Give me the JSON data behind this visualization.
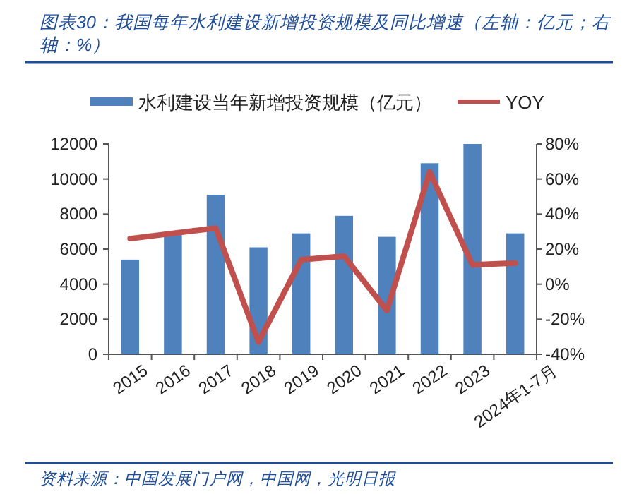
{
  "chart_data": {
    "type": "bar",
    "title": "图表30：我国每年水利建设新增投资规模及同比增速（左轴：亿元；右轴：%）",
    "categories": [
      "2015",
      "2016",
      "2017",
      "2018",
      "2019",
      "2020",
      "2021",
      "2022",
      "2023",
      "2024年1-7月"
    ],
    "series": [
      {
        "name": "水利建设当年新增投资规模（亿元）",
        "color": "#4f81bd",
        "values": [
          5400,
          6800,
          9100,
          6100,
          6900,
          7900,
          6700,
          10900,
          12000,
          6900
        ]
      },
      {
        "name": "YOY",
        "type": "line",
        "axis": "y2",
        "color": "#c0504d",
        "values": [
          26,
          29,
          32,
          -33,
          14,
          16,
          -15,
          64,
          11,
          12
        ]
      }
    ],
    "ylim": [
      0,
      12000
    ],
    "yticks": [
      0,
      2000,
      4000,
      6000,
      8000,
      10000,
      12000
    ],
    "y2lim": [
      -40,
      80
    ],
    "y2ticks": [
      {
        "value": -40,
        "label": "-40%"
      },
      {
        "value": -20,
        "label": "-20%"
      },
      {
        "value": 0,
        "label": "0%"
      },
      {
        "value": 20,
        "label": "20%"
      },
      {
        "value": 40,
        "label": "40%"
      },
      {
        "value": 60,
        "label": "60%"
      },
      {
        "value": 80,
        "label": "80%"
      }
    ],
    "legend": "top",
    "annotations": [
      "资料来源：中国发展门户网，中国网，光明日报"
    ]
  }
}
